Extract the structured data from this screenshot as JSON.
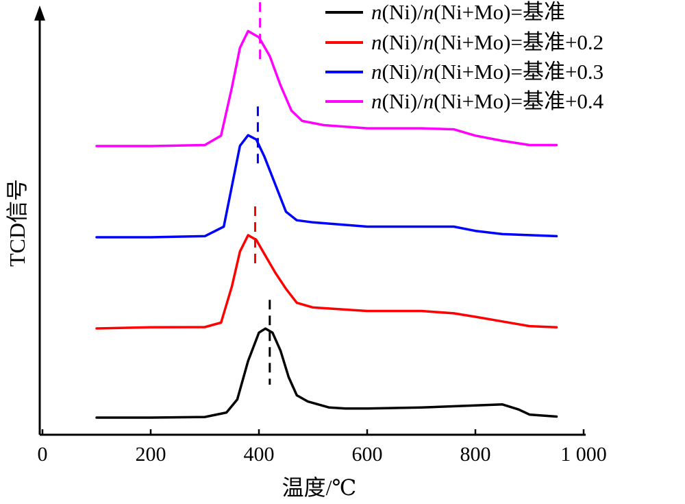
{
  "chart_data": {
    "type": "line",
    "xlabel": "温度/℃",
    "ylabel": "TCD信号",
    "xlim": [
      0,
      1000
    ],
    "xticks": [
      {
        "value": 0,
        "label": "0"
      },
      {
        "value": 200,
        "label": "200"
      },
      {
        "value": 400,
        "label": "400"
      },
      {
        "value": 600,
        "label": "600"
      },
      {
        "value": 800,
        "label": "800"
      },
      {
        "value": 1000,
        "label": "1 000"
      }
    ],
    "grid": false,
    "legend_position": "top-right",
    "series": [
      {
        "name": "n(Ni)/n(Ni+Mo)=基准",
        "name_parts": {
          "n1": "n",
          "t1": "(Ni)/",
          "n2": "n",
          "t2": "(Ni+Mo)=基准"
        },
        "color": "#000000",
        "peak_marker": 420,
        "points": [
          [
            100,
            0.0
          ],
          [
            200,
            0.0
          ],
          [
            300,
            0.3
          ],
          [
            340,
            2.5
          ],
          [
            360,
            9
          ],
          [
            380,
            28
          ],
          [
            400,
            42
          ],
          [
            412,
            44
          ],
          [
            425,
            42
          ],
          [
            440,
            33
          ],
          [
            455,
            20
          ],
          [
            470,
            11
          ],
          [
            490,
            8
          ],
          [
            530,
            5
          ],
          [
            560,
            4.5
          ],
          [
            600,
            4.5
          ],
          [
            700,
            5
          ],
          [
            800,
            6
          ],
          [
            850,
            6.5
          ],
          [
            880,
            4
          ],
          [
            900,
            1.5
          ],
          [
            950,
            0.5
          ]
        ]
      },
      {
        "name": "n(Ni)/n(Ni+Mo)=基准+0.2",
        "name_parts": {
          "n1": "n",
          "t1": "(Ni)/",
          "n2": "n",
          "t2": "(Ni+Mo)=基准+0.2"
        },
        "color": "#ff0000",
        "peak_marker": 393,
        "points": [
          [
            100,
            0.0
          ],
          [
            200,
            0.5
          ],
          [
            300,
            0.6
          ],
          [
            330,
            2.5
          ],
          [
            350,
            18
          ],
          [
            365,
            33
          ],
          [
            380,
            40
          ],
          [
            395,
            38
          ],
          [
            410,
            32
          ],
          [
            430,
            24
          ],
          [
            450,
            17
          ],
          [
            470,
            11
          ],
          [
            500,
            9
          ],
          [
            600,
            7.5
          ],
          [
            700,
            7.5
          ],
          [
            760,
            6.5
          ],
          [
            800,
            5
          ],
          [
            850,
            3
          ],
          [
            900,
            1
          ],
          [
            950,
            0.5
          ]
        ]
      },
      {
        "name": "n(Ni)/n(Ni+Mo)=基准+0.3",
        "name_parts": {
          "n1": "n",
          "t1": "(Ni)/",
          "n2": "n",
          "t2": "(Ni+Mo)=基准+0.3"
        },
        "color": "#0000ff",
        "peak_marker": 398,
        "points": [
          [
            100,
            0.0
          ],
          [
            200,
            0.0
          ],
          [
            300,
            0.5
          ],
          [
            335,
            5
          ],
          [
            350,
            24
          ],
          [
            365,
            43
          ],
          [
            380,
            48
          ],
          [
            395,
            46
          ],
          [
            410,
            38
          ],
          [
            430,
            25
          ],
          [
            450,
            12
          ],
          [
            470,
            8
          ],
          [
            500,
            7
          ],
          [
            600,
            5
          ],
          [
            700,
            5
          ],
          [
            760,
            5
          ],
          [
            800,
            3
          ],
          [
            850,
            1.5
          ],
          [
            900,
            1
          ],
          [
            950,
            0.5
          ]
        ]
      },
      {
        "name": "n(Ni)/n(Ni+Mo)=基准+0.4",
        "name_parts": {
          "n1": "n",
          "t1": "(Ni)/",
          "n2": "n",
          "t2": "(Ni+Mo)=基准+0.4"
        },
        "color": "#ff00ff",
        "peak_marker": 402,
        "points": [
          [
            100,
            0.0
          ],
          [
            200,
            0.0
          ],
          [
            300,
            0.5
          ],
          [
            330,
            5
          ],
          [
            350,
            28
          ],
          [
            365,
            47
          ],
          [
            380,
            55
          ],
          [
            400,
            52
          ],
          [
            420,
            43
          ],
          [
            440,
            29
          ],
          [
            460,
            17
          ],
          [
            480,
            12
          ],
          [
            520,
            10
          ],
          [
            600,
            8.5
          ],
          [
            700,
            8.5
          ],
          [
            760,
            8
          ],
          [
            800,
            5
          ],
          [
            850,
            2.5
          ],
          [
            900,
            0.5
          ],
          [
            950,
            0.5
          ]
        ]
      }
    ]
  }
}
